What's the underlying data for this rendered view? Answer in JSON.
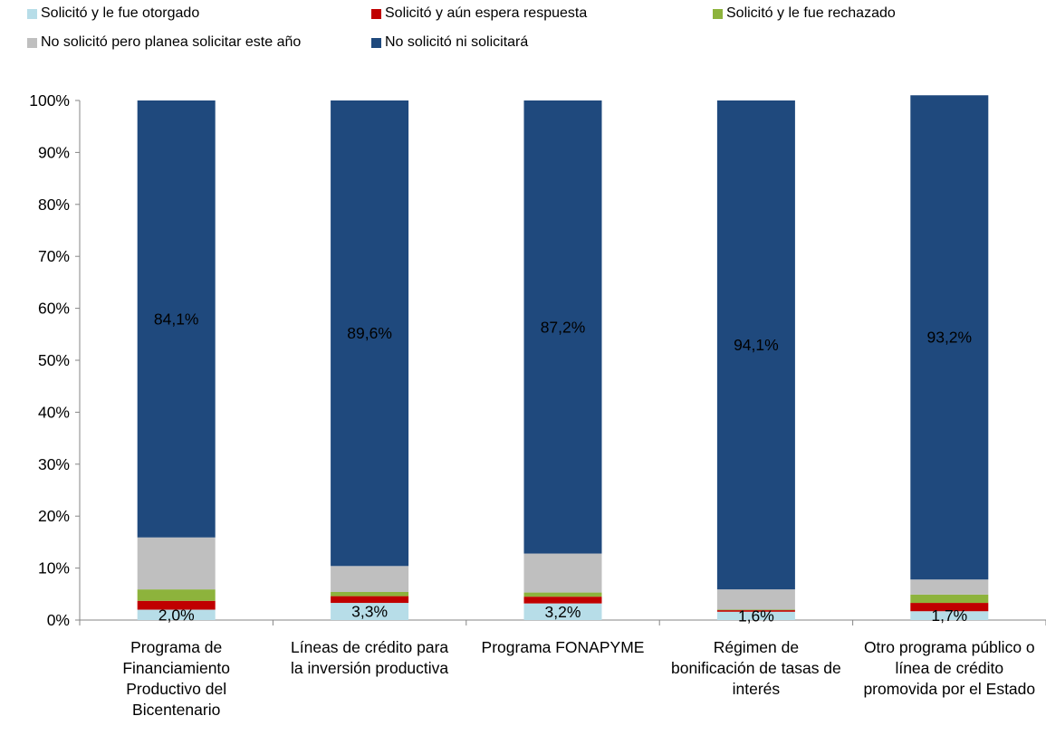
{
  "chart_data": {
    "type": "bar",
    "stacked": true,
    "categories": [
      "Programa de Financiamiento Productivo del Bicentenario",
      "Líneas de crédito para la inversión productiva",
      "Programa FONAPYME",
      "Régimen de bonificación de tasas de interés",
      "Otro programa público o línea de crédito promovida por el Estado"
    ],
    "series": [
      {
        "name": "Solicitó y le fue otorgado",
        "color": "#b7dde8",
        "values": [
          2.0,
          3.3,
          3.2,
          1.6,
          1.7
        ],
        "labels": [
          "2,0%",
          "3,3%",
          "3,2%",
          "1,6%",
          "1,7%"
        ]
      },
      {
        "name": "Solicitó y aún espera respuesta",
        "color": "#c00000",
        "values": [
          1.7,
          1.3,
          1.3,
          0.3,
          1.6
        ],
        "labels": [
          "",
          "",
          "",
          "",
          ""
        ]
      },
      {
        "name": "Solicitó y le fue rechazado",
        "color": "#8db33c",
        "values": [
          2.2,
          0.8,
          0.8,
          0.1,
          1.6
        ],
        "labels": [
          "",
          "",
          "",
          "",
          ""
        ]
      },
      {
        "name": "No solicitó pero planea solicitar este año",
        "color": "#bfbfbf",
        "values": [
          10.0,
          5.0,
          7.5,
          3.9,
          2.9
        ],
        "labels": [
          "",
          "",
          "",
          "",
          ""
        ]
      },
      {
        "name": "No solicitó ni solicitará",
        "color": "#1f497d",
        "values": [
          84.1,
          89.6,
          87.2,
          94.1,
          93.2
        ],
        "labels": [
          "84,1%",
          "89,6%",
          "87,2%",
          "94,1%",
          "93,2%"
        ]
      }
    ],
    "ylim": [
      0,
      100
    ],
    "yticks": [
      "0%",
      "10%",
      "20%",
      "30%",
      "40%",
      "50%",
      "60%",
      "70%",
      "80%",
      "90%",
      "100%"
    ],
    "legend_position": "top",
    "grid": false
  }
}
